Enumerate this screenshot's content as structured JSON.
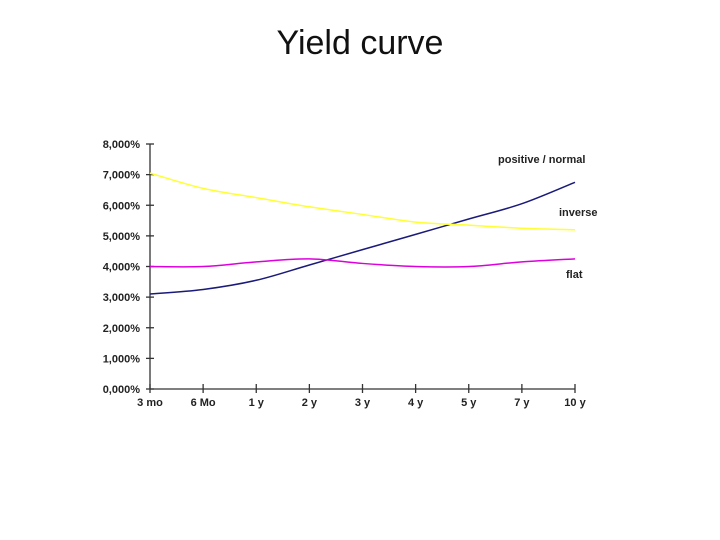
{
  "slide": {
    "title": "Yield curve"
  },
  "chart_data": {
    "type": "line",
    "title": "",
    "xlabel": "",
    "ylabel": "",
    "categories": [
      "3 mo",
      "6 Mo",
      "1 y",
      "2 y",
      "3 y",
      "4 y",
      "5 y",
      "7 y",
      "10 y"
    ],
    "ylim": [
      0,
      8
    ],
    "y_ticks": [
      "0,000%",
      "1,000%",
      "2,000%",
      "3,000%",
      "4,000%",
      "5,000%",
      "6,000%",
      "7,000%",
      "8,000%"
    ],
    "grid": false,
    "series": [
      {
        "name": "positive / normal",
        "color": "#1a1a7a",
        "values": [
          3.1,
          3.25,
          3.55,
          4.05,
          4.55,
          5.05,
          5.55,
          6.05,
          6.75
        ]
      },
      {
        "name": "inverse",
        "color": "#ffff33",
        "values": [
          7.05,
          6.55,
          6.25,
          5.95,
          5.7,
          5.45,
          5.35,
          5.25,
          5.2
        ]
      },
      {
        "name": "flat",
        "color": "#dd00dd",
        "values": [
          4.0,
          4.0,
          4.15,
          4.25,
          4.1,
          4.0,
          4.0,
          4.15,
          4.25
        ]
      }
    ]
  }
}
